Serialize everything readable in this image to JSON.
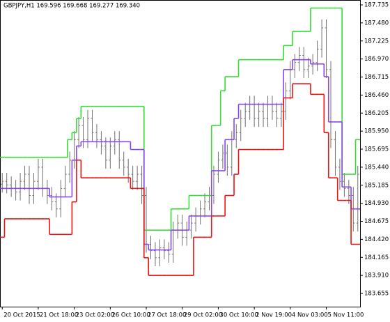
{
  "chart_data": {
    "type": "ohlc",
    "title": "GBPJPY,H1  169.596 169.668 169.277 169.340",
    "ohlc": {
      "color": "#707070",
      "open": [
        185.2,
        185.24,
        185.19,
        185.14,
        185.09,
        185.24,
        185.34,
        185.04,
        185.24,
        185.44,
        185.14,
        185.04,
        184.95,
        184.85,
        185.14,
        185.34,
        185.54,
        185.83,
        186.03,
        185.83,
        186.13,
        185.93,
        185.83,
        185.74,
        185.54,
        185.74,
        185.83,
        185.54,
        185.44,
        185.34,
        185.24,
        185.34,
        185.04,
        184.35,
        184.26,
        184.16,
        184.3,
        184.26,
        184.21,
        184.55,
        184.65,
        184.45,
        184.55,
        184.65,
        184.75,
        184.85,
        184.95,
        185.04,
        185.34,
        185.54,
        185.64,
        185.44,
        185.83,
        185.93,
        186.13,
        186.23,
        186.33,
        186.13,
        186.23,
        186.13,
        186.33,
        186.23,
        186.13,
        186.23,
        186.52,
        186.82,
        186.92,
        187.02,
        186.82,
        186.87,
        186.92,
        187.11,
        187.41,
        186.82,
        185.83,
        185.44,
        185.24,
        185.14,
        185.04,
        184.65
      ],
      "high": [
        185.36,
        185.36,
        185.31,
        185.26,
        185.36,
        185.46,
        185.46,
        185.36,
        185.56,
        185.56,
        185.26,
        185.16,
        185.07,
        185.26,
        185.46,
        185.66,
        185.95,
        186.15,
        186.15,
        186.25,
        186.25,
        186.05,
        185.95,
        185.86,
        185.86,
        185.95,
        185.95,
        185.66,
        185.56,
        185.46,
        185.46,
        185.46,
        185.16,
        184.47,
        184.38,
        184.42,
        184.42,
        184.38,
        184.67,
        184.77,
        184.77,
        184.67,
        184.77,
        184.87,
        184.97,
        185.07,
        185.16,
        185.46,
        185.66,
        185.76,
        185.76,
        185.95,
        186.05,
        186.25,
        186.35,
        186.45,
        186.45,
        186.35,
        186.35,
        186.45,
        186.45,
        186.35,
        186.35,
        186.64,
        186.94,
        187.04,
        187.14,
        187.14,
        186.99,
        187.04,
        187.23,
        187.53,
        187.53,
        186.94,
        185.95,
        185.56,
        185.36,
        185.26,
        185.16,
        185.46
      ],
      "low": [
        185.08,
        185.07,
        185.02,
        184.97,
        184.97,
        185.12,
        184.92,
        184.92,
        185.12,
        185.02,
        184.92,
        184.83,
        184.73,
        184.73,
        185.02,
        185.22,
        185.42,
        185.71,
        185.71,
        185.71,
        185.81,
        185.71,
        185.62,
        185.42,
        185.42,
        185.62,
        185.42,
        185.32,
        185.22,
        185.12,
        185.12,
        184.92,
        184.23,
        184.14,
        184.04,
        184.04,
        184.14,
        184.09,
        184.09,
        184.43,
        184.33,
        184.33,
        184.43,
        184.53,
        184.63,
        184.73,
        184.83,
        184.92,
        185.22,
        185.42,
        185.32,
        185.32,
        185.71,
        185.81,
        186.01,
        186.11,
        186.01,
        186.01,
        186.01,
        186.01,
        186.11,
        186.01,
        186.01,
        186.11,
        186.4,
        186.7,
        186.8,
        186.7,
        186.7,
        186.75,
        186.8,
        186.99,
        186.7,
        185.71,
        185.32,
        185.12,
        185.02,
        184.92,
        184.53,
        184.53
      ],
      "close": [
        185.24,
        185.19,
        185.14,
        185.09,
        185.24,
        185.34,
        185.04,
        185.24,
        185.44,
        185.14,
        185.04,
        184.95,
        184.85,
        185.14,
        185.34,
        185.54,
        185.83,
        186.03,
        185.83,
        186.13,
        185.93,
        185.83,
        185.74,
        185.54,
        185.74,
        185.83,
        185.54,
        185.44,
        185.34,
        185.24,
        185.34,
        185.04,
        184.35,
        184.26,
        184.16,
        184.3,
        184.26,
        184.21,
        184.55,
        184.65,
        184.45,
        184.55,
        184.65,
        184.75,
        184.85,
        184.95,
        185.04,
        185.34,
        185.54,
        185.64,
        185.44,
        185.83,
        185.93,
        186.13,
        186.23,
        186.33,
        186.13,
        186.23,
        186.13,
        186.33,
        186.23,
        186.13,
        186.23,
        186.52,
        186.82,
        186.92,
        187.02,
        186.82,
        186.87,
        186.92,
        187.11,
        187.41,
        186.82,
        185.83,
        185.44,
        185.24,
        185.14,
        185.04,
        184.65,
        185.34
      ]
    },
    "series": [
      {
        "color": "#33dd33",
        "values": [
          185.58,
          185.58,
          185.58,
          185.58,
          185.58,
          185.58,
          185.58,
          185.58,
          185.58,
          185.58,
          185.58,
          185.58,
          185.58,
          185.58,
          185.58,
          185.83,
          185.93,
          186.13,
          186.3,
          186.3,
          186.3,
          186.3,
          186.3,
          186.3,
          186.3,
          186.3,
          186.3,
          186.3,
          186.3,
          186.3,
          186.3,
          186.3,
          184.55,
          184.55,
          184.55,
          184.55,
          184.55,
          184.55,
          184.85,
          184.85,
          184.85,
          184.85,
          185.04,
          185.04,
          185.04,
          185.04,
          185.04,
          186.03,
          186.03,
          186.52,
          186.72,
          186.72,
          186.72,
          186.96,
          186.96,
          186.96,
          186.96,
          186.96,
          186.96,
          186.96,
          186.96,
          186.96,
          186.96,
          187.16,
          187.16,
          187.36,
          187.36,
          187.36,
          187.36,
          187.69,
          187.69,
          187.69,
          187.69,
          187.69,
          187.69,
          187.69,
          185.34,
          185.34,
          185.34,
          185.83
        ]
      },
      {
        "color": "#8844ee",
        "values": [
          185.14,
          185.14,
          185.14,
          185.14,
          185.14,
          185.14,
          185.14,
          185.14,
          185.14,
          185.14,
          185.14,
          185.02,
          185.02,
          185.02,
          185.02,
          185.02,
          185.54,
          185.74,
          185.8,
          185.8,
          185.8,
          185.8,
          185.8,
          185.8,
          185.8,
          185.8,
          185.8,
          185.8,
          185.8,
          185.69,
          185.69,
          185.69,
          184.35,
          184.27,
          184.27,
          184.27,
          184.27,
          184.27,
          184.55,
          184.55,
          184.55,
          184.55,
          184.75,
          184.75,
          184.75,
          184.75,
          184.75,
          185.39,
          185.39,
          185.39,
          185.83,
          185.83,
          186.13,
          186.33,
          186.33,
          186.33,
          186.33,
          186.33,
          186.33,
          186.33,
          186.33,
          186.33,
          186.33,
          186.82,
          186.82,
          186.96,
          186.96,
          186.96,
          186.96,
          186.9,
          186.9,
          186.9,
          186.72,
          186.08,
          186.08,
          186.08,
          185.16,
          185.16,
          184.85,
          184.85
        ]
      },
      {
        "color": "#ee1111",
        "values": [
          184.45,
          184.71,
          184.71,
          184.71,
          184.71,
          184.71,
          184.71,
          184.71,
          184.71,
          184.71,
          184.71,
          184.49,
          184.49,
          184.49,
          184.49,
          184.49,
          184.95,
          185.54,
          185.29,
          185.29,
          185.29,
          185.29,
          185.29,
          185.29,
          185.29,
          185.29,
          185.29,
          185.29,
          185.29,
          185.14,
          185.14,
          185.14,
          184.16,
          183.91,
          183.91,
          183.91,
          183.91,
          183.91,
          183.91,
          183.91,
          183.91,
          183.91,
          183.91,
          184.45,
          184.45,
          184.45,
          184.45,
          184.75,
          184.75,
          184.75,
          185.04,
          185.04,
          185.34,
          185.69,
          185.69,
          185.69,
          185.69,
          185.69,
          185.69,
          185.69,
          185.69,
          185.69,
          185.69,
          186.42,
          186.42,
          186.62,
          186.62,
          186.62,
          186.62,
          186.47,
          186.47,
          186.47,
          185.93,
          185.29,
          185.29,
          184.97,
          184.97,
          184.97,
          184.35,
          184.35
        ]
      }
    ],
    "xlim": [
      -0.5,
      79.5
    ],
    "xticks": [
      {
        "value": 0,
        "label": "20 Oct 2015"
      },
      {
        "value": 8,
        "label": "21 Oct 18:00"
      },
      {
        "value": 16,
        "label": "23 Oct 02:00"
      },
      {
        "value": 24,
        "label": "26 Oct 10:00"
      },
      {
        "value": 32,
        "label": "27 Oct 18:00"
      },
      {
        "value": 40,
        "label": "29 Oct 02:00"
      },
      {
        "value": 48,
        "label": "30 Oct 10:00"
      },
      {
        "value": 56,
        "label": "2 Nov 19:00"
      },
      {
        "value": 64,
        "label": "4 Nov 03:00"
      },
      {
        "value": 72,
        "label": "5 Nov 11:00"
      }
    ],
    "ylim": [
      183.468,
      187.804
    ],
    "yticks": [
      187.735,
      {
        "value": 187.48,
        "label": "187.480"
      },
      187.225,
      {
        "value": 186.97,
        "label": "186.970"
      },
      186.715,
      {
        "value": 186.46,
        "label": "186.460"
      },
      186.205,
      {
        "value": 185.95,
        "label": "185.950"
      },
      185.695,
      {
        "value": 185.44,
        "label": "185.440"
      },
      185.185,
      {
        "value": 184.93,
        "label": "184.930"
      },
      184.675,
      {
        "value": 184.42,
        "label": "184.420"
      },
      184.165,
      {
        "value": 183.91,
        "label": "183.910"
      },
      183.655
    ]
  }
}
